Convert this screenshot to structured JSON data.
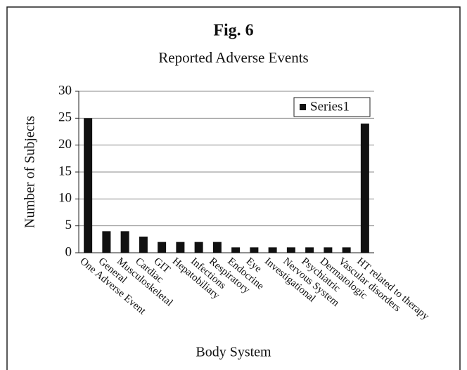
{
  "chart_data": {
    "type": "bar",
    "title": "Fig. 6",
    "subtitle": "Reported Adverse Events",
    "x_label": "Body System",
    "y_label": "Number of Subjects",
    "categories": [
      "One Adverse Event",
      "General",
      "Musculoskeletal",
      "Cardiac",
      "GIT",
      "Hepatobiliary",
      "Infections",
      "Respiratory",
      "Endocrine",
      "Eye",
      "Investigational",
      "Nervous System",
      "Psychiatric",
      "Dermatologic",
      "Vascular disorders",
      "HT related to therapy"
    ],
    "series": [
      {
        "name": "Series1",
        "color": "#111111",
        "values": [
          25,
          4,
          4,
          3,
          2,
          2,
          2,
          2,
          1,
          1,
          1,
          1,
          1,
          1,
          1,
          24
        ]
      }
    ],
    "ylim": [
      0,
      30
    ],
    "yticks": [
      0,
      5,
      10,
      15,
      20,
      25,
      30
    ],
    "grid": true,
    "legend": "top-right"
  }
}
